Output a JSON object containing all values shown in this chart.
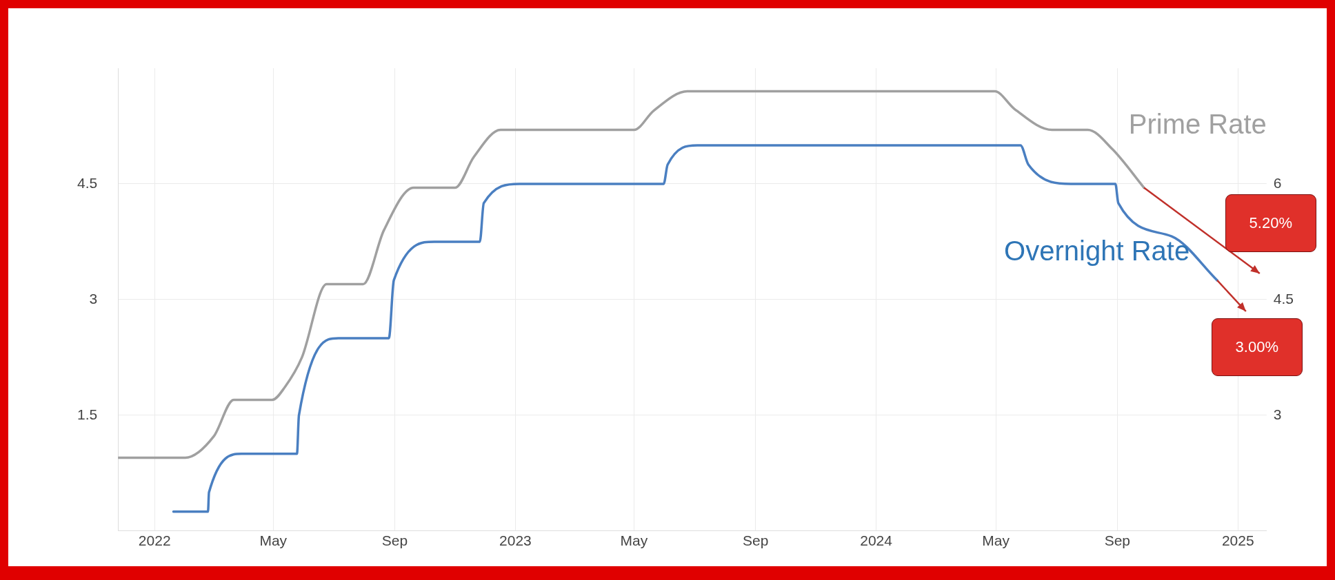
{
  "chart_data": {
    "type": "line",
    "xlim": [
      "2021-11-25",
      "2025-01-30"
    ],
    "xticks": [
      {
        "value": "2022-01-01",
        "label": "2022"
      },
      {
        "value": "2022-05-01",
        "label": "May"
      },
      {
        "value": "2022-09-01",
        "label": "Sep"
      },
      {
        "value": "2023-01-01",
        "label": "2023"
      },
      {
        "value": "2023-05-01",
        "label": "May"
      },
      {
        "value": "2023-09-01",
        "label": "Sep"
      },
      {
        "value": "2024-01-01",
        "label": "2024"
      },
      {
        "value": "2024-05-01",
        "label": "May"
      },
      {
        "value": "2024-09-01",
        "label": "Sep"
      },
      {
        "value": "2025-01-01",
        "label": "2025"
      }
    ],
    "ylim": [
      0,
      6
    ],
    "yticks": [
      1.5,
      3,
      4.5
    ],
    "y2lim": [
      1.5,
      7.5
    ],
    "y2ticks": [
      3,
      4.5,
      6
    ],
    "grid": true,
    "marker": "none",
    "series": [
      {
        "name": "Prime Rate",
        "color": "#a0a0a0",
        "axis": "y2",
        "x": [
          "2021-11-25",
          "2022-02-01",
          "2022-03-02",
          "2022-03-22",
          "2022-04-30",
          "2022-05-13",
          "2022-05-30",
          "2022-06-24",
          "2022-07-31",
          "2022-08-21",
          "2022-09-20",
          "2022-11-01",
          "2022-11-20",
          "2022-12-17",
          "2023-05-01",
          "2023-05-21",
          "2023-06-24",
          "2024-04-30",
          "2024-05-20",
          "2024-06-27",
          "2024-08-02",
          "2024-08-27",
          "2024-09-28"
        ],
        "values": [
          2.45,
          2.45,
          2.73,
          3.2,
          3.2,
          3.37,
          3.75,
          4.7,
          4.7,
          5.4,
          5.95,
          5.95,
          6.35,
          6.7,
          6.7,
          6.95,
          7.2,
          7.2,
          6.97,
          6.7,
          6.7,
          6.45,
          5.95
        ]
      },
      {
        "name": "Overnight Rate",
        "color": "#4a7fc1",
        "x": [
          "2022-01-20",
          "2022-02-24",
          "2022-02-25",
          "2022-03-30",
          "2022-05-25",
          "2022-05-27",
          "2022-07-06",
          "2022-08-26",
          "2022-08-31",
          "2022-10-11",
          "2022-11-26",
          "2022-11-30",
          "2023-01-05",
          "2023-05-31",
          "2023-06-04",
          "2023-07-04",
          "2024-05-26",
          "2024-06-03",
          "2024-07-16",
          "2024-08-30",
          "2024-09-02",
          "2024-10-26",
          "2024-12-11"
        ],
        "values": [
          0.25,
          0.25,
          0.5,
          1.0,
          1.0,
          1.5,
          2.5,
          2.5,
          3.25,
          3.75,
          3.75,
          4.25,
          4.5,
          4.5,
          4.75,
          5.0,
          5.0,
          4.75,
          4.5,
          4.5,
          4.25,
          3.82,
          3.25
        ]
      }
    ],
    "annotations": [
      "5.20%",
      "3.00%"
    ]
  }
}
